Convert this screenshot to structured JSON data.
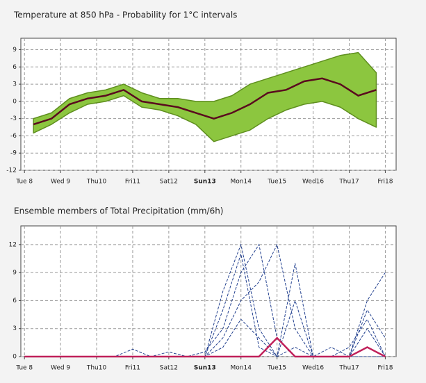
{
  "chart_data": [
    {
      "type": "line",
      "title": "Temperature at 850 hPa - Probability for 1°C intervals",
      "x": [
        0.25,
        0.75,
        1.25,
        1.75,
        2.25,
        2.75,
        3.25,
        3.75,
        4.25,
        4.75,
        5.25,
        5.75,
        6.25,
        6.75,
        7.25,
        7.75,
        8.25,
        8.75,
        9.25,
        9.75
      ],
      "band": {
        "color": "#8cc63f",
        "high": [
          -3,
          -2,
          0.5,
          1.5,
          2,
          3,
          1.5,
          0.5,
          0.5,
          0,
          0,
          1,
          3,
          4,
          5,
          6,
          7,
          8,
          8.5,
          5
        ],
        "low": [
          -5.5,
          -4,
          -2,
          -0.5,
          0,
          1,
          -1,
          -1.5,
          -2.5,
          -4,
          -7,
          -6,
          -5,
          -3,
          -1.5,
          -0.5,
          0,
          -1,
          -3,
          -4.5
        ]
      },
      "series": [
        {
          "color": "#5a0a1e",
          "values": [
            -4,
            -3,
            -0.5,
            0.5,
            1,
            2,
            0,
            -0.5,
            -1,
            -2,
            -3,
            -2,
            -0.5,
            1.5,
            2,
            3.5,
            4,
            3,
            1,
            2
          ]
        }
      ],
      "xlim": [
        -0.1,
        10.3
      ],
      "xticks": [
        {
          "value": 0,
          "label": "Tue 8"
        },
        {
          "value": 1,
          "label": "Wed 9"
        },
        {
          "value": 2,
          "label": "Thu10"
        },
        {
          "value": 3,
          "label": "Fri11"
        },
        {
          "value": 4,
          "label": "Sat12"
        },
        {
          "value": 5,
          "label": "Sun13",
          "color": "#8b1a2a"
        },
        {
          "value": 6,
          "label": "Mon14"
        },
        {
          "value": 7,
          "label": "Tue15"
        },
        {
          "value": 8,
          "label": "Wed16"
        },
        {
          "value": 9,
          "label": "Thu17"
        },
        {
          "value": 10,
          "label": "Fri18"
        }
      ],
      "ylim": [
        -12,
        11
      ],
      "yticks": [
        -12,
        -9,
        -6,
        -3,
        0,
        3,
        6,
        9
      ],
      "grid": true
    },
    {
      "type": "line",
      "title": "Ensemble members of Total Precipitation (mm/6h)",
      "x": [
        0,
        0.5,
        1,
        1.5,
        2,
        2.5,
        3,
        3.5,
        4,
        4.5,
        5,
        5.5,
        6,
        6.5,
        7,
        7.5,
        8,
        8.5,
        9,
        9.5,
        10
      ],
      "series": [
        {
          "color": "#22408f",
          "dashed": true,
          "values": [
            0,
            0,
            0,
            0,
            0,
            0,
            0,
            0,
            0,
            0,
            0,
            7,
            12,
            3,
            0,
            1,
            0,
            0,
            0,
            0,
            0
          ]
        },
        {
          "color": "#22408f",
          "dashed": true,
          "values": [
            0,
            0,
            0,
            0,
            0,
            0,
            0.8,
            0,
            0,
            0,
            0.5,
            3,
            9,
            12,
            2,
            0,
            0,
            0,
            1,
            4,
            0
          ]
        },
        {
          "color": "#22408f",
          "dashed": true,
          "values": [
            0,
            0,
            0,
            0,
            0,
            0,
            0,
            0,
            0.5,
            0,
            0,
            5,
            11,
            1,
            0,
            10,
            0,
            0,
            0,
            6,
            9
          ]
        },
        {
          "color": "#22408f",
          "dashed": true,
          "values": [
            0,
            0,
            0,
            0,
            0,
            0,
            0,
            0,
            0,
            0,
            0,
            2,
            6,
            8,
            12,
            3,
            0,
            0,
            0,
            5,
            2
          ]
        },
        {
          "color": "#22408f",
          "dashed": true,
          "values": [
            0,
            0,
            0,
            0,
            0,
            0,
            0,
            0,
            0,
            0,
            0,
            1,
            4,
            2,
            0,
            6,
            0,
            1,
            0,
            3,
            0
          ]
        },
        {
          "color": "#c0205a",
          "values": [
            0,
            0,
            0,
            0,
            0,
            0,
            0,
            0,
            0,
            0,
            0,
            0,
            0,
            0,
            2,
            0,
            0,
            0,
            0,
            1,
            0
          ]
        }
      ],
      "xlim": [
        -0.1,
        10.3
      ],
      "xticks": [
        {
          "value": 0,
          "label": "Tue 8"
        },
        {
          "value": 1,
          "label": "Wed 9"
        },
        {
          "value": 2,
          "label": "Thu10"
        },
        {
          "value": 3,
          "label": "Fri11"
        },
        {
          "value": 4,
          "label": "Sat12"
        },
        {
          "value": 5,
          "label": "Sun13",
          "color": "#8b1a2a"
        },
        {
          "value": 6,
          "label": "Mon14"
        },
        {
          "value": 7,
          "label": "Tue15"
        },
        {
          "value": 8,
          "label": "Wed16"
        },
        {
          "value": 9,
          "label": "Thu17"
        },
        {
          "value": 10,
          "label": "Fri18"
        }
      ],
      "ylim": [
        0,
        14
      ],
      "yticks": [
        0,
        3,
        6,
        9,
        12
      ],
      "grid": true
    }
  ]
}
